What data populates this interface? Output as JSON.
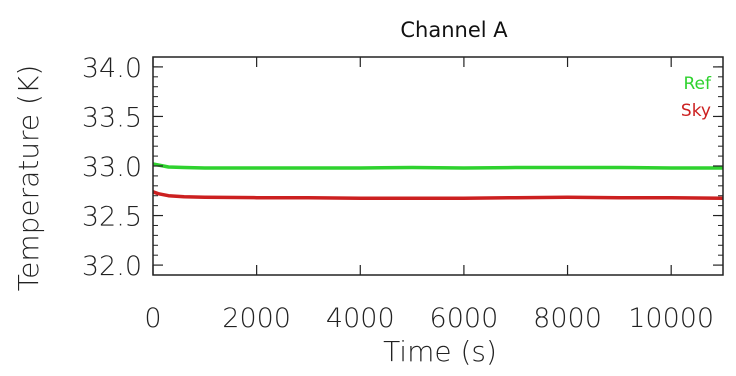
{
  "chart_data": {
    "type": "line",
    "title": "Channel A",
    "xlabel": "Time (s)",
    "ylabel": "Temperature (K)",
    "xlim": [
      0,
      11000
    ],
    "ylim": [
      31.9,
      34.1
    ],
    "x_ticks": [
      "0",
      "2000",
      "4000",
      "6000",
      "8000",
      "10000"
    ],
    "x_tick_values": [
      0,
      2000,
      4000,
      6000,
      8000,
      10000
    ],
    "y_ticks": [
      "32.0",
      "32.5",
      "33.0",
      "33.5",
      "34.0"
    ],
    "y_tick_values": [
      32.0,
      32.5,
      33.0,
      33.5,
      34.0
    ],
    "legend_placement": "top-right",
    "grid": false,
    "series": [
      {
        "name": "Ref",
        "color": "#2fd22f",
        "x": [
          0,
          100,
          300,
          600,
          1000,
          2000,
          3000,
          4000,
          5000,
          6000,
          7000,
          8000,
          9000,
          10000,
          11000
        ],
        "y": [
          33.02,
          33.01,
          32.99,
          32.985,
          32.98,
          32.98,
          32.98,
          32.98,
          32.985,
          32.98,
          32.985,
          32.985,
          32.985,
          32.98,
          32.98
        ]
      },
      {
        "name": "Sky",
        "color": "#cc2020",
        "x": [
          0,
          100,
          300,
          600,
          1000,
          2000,
          3000,
          4000,
          5000,
          6000,
          7000,
          8000,
          9000,
          10000,
          11000
        ],
        "y": [
          32.74,
          32.72,
          32.7,
          32.69,
          32.685,
          32.68,
          32.68,
          32.675,
          32.675,
          32.675,
          32.68,
          32.685,
          32.68,
          32.68,
          32.675
        ]
      }
    ]
  }
}
